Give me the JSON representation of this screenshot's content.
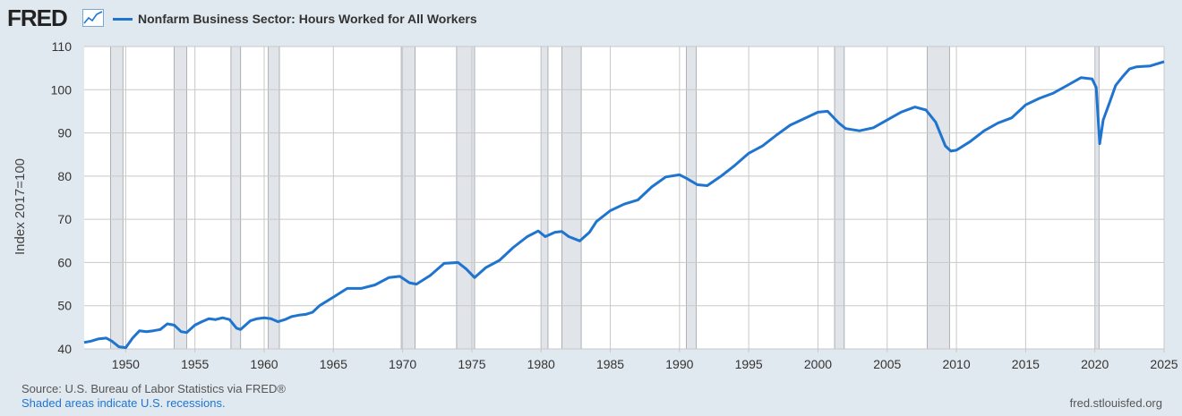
{
  "header": {
    "logo_text": "FRED",
    "logo_icon": "line-chart-icon",
    "legend_label": "Nonfarm Business Sector: Hours Worked for All Workers"
  },
  "colors": {
    "line": "#1f74d0",
    "recession": "#e1e5ea",
    "plot_bg": "#ffffff",
    "page_bg": "#e1e9f0",
    "grid": "#c8c8c8"
  },
  "footer": {
    "source": "U.S. Bureau of Labor Statistics via FRED®",
    "source_prefix": "Source:",
    "shaded_note": "Shaded areas indicate U.S. recessions.",
    "site": "fred.stlouisfed.org"
  },
  "chart_data": {
    "type": "line",
    "title": "",
    "xlabel": "",
    "ylabel": "Index 2017=100",
    "xlim": [
      1947.0,
      2025.0
    ],
    "ylim": [
      40,
      110
    ],
    "y_ticks": [
      40,
      50,
      60,
      70,
      80,
      90,
      100,
      110
    ],
    "x_ticks": [
      1950,
      1955,
      1960,
      1965,
      1970,
      1975,
      1980,
      1985,
      1990,
      1995,
      2000,
      2005,
      2010,
      2015,
      2020,
      2025
    ],
    "grid": true,
    "recessions": [
      [
        1948.9,
        1949.8
      ],
      [
        1953.5,
        1954.4
      ],
      [
        1957.6,
        1958.3
      ],
      [
        1960.3,
        1961.1
      ],
      [
        1969.9,
        1970.9
      ],
      [
        1973.9,
        1975.2
      ],
      [
        1980.0,
        1980.5
      ],
      [
        1981.5,
        1982.9
      ],
      [
        1990.5,
        1991.2
      ],
      [
        2001.2,
        2001.9
      ],
      [
        2007.9,
        2009.5
      ],
      [
        2020.0,
        2020.3
      ]
    ],
    "series": [
      {
        "name": "Nonfarm Business Sector: Hours Worked for All Workers",
        "x": [
          1947.0,
          1947.5,
          1948.0,
          1948.6,
          1949.0,
          1949.5,
          1950.0,
          1950.5,
          1951.0,
          1951.5,
          1952.0,
          1952.5,
          1953.0,
          1953.5,
          1954.0,
          1954.4,
          1955.0,
          1955.5,
          1956.0,
          1956.5,
          1957.0,
          1957.5,
          1958.0,
          1958.3,
          1959.0,
          1959.5,
          1960.0,
          1960.5,
          1961.0,
          1961.5,
          1962.0,
          1962.5,
          1963.0,
          1963.5,
          1964.0,
          1965.0,
          1966.0,
          1967.0,
          1968.0,
          1969.0,
          1969.8,
          1970.5,
          1971.0,
          1972.0,
          1973.0,
          1974.0,
          1974.6,
          1975.2,
          1976.0,
          1977.0,
          1978.0,
          1979.0,
          1979.8,
          1980.3,
          1981.0,
          1981.5,
          1982.0,
          1982.8,
          1983.5,
          1984.0,
          1985.0,
          1986.0,
          1987.0,
          1988.0,
          1989.0,
          1990.0,
          1990.5,
          1991.3,
          1992.0,
          1993.0,
          1994.0,
          1995.0,
          1996.0,
          1997.0,
          1998.0,
          1999.0,
          2000.0,
          2000.7,
          2001.5,
          2002.0,
          2003.0,
          2004.0,
          2005.0,
          2006.0,
          2007.0,
          2007.8,
          2008.5,
          2009.2,
          2009.6,
          2010.0,
          2011.0,
          2012.0,
          2013.0,
          2014.0,
          2015.0,
          2016.0,
          2017.0,
          2018.0,
          2019.0,
          2019.8,
          2020.1,
          2020.35,
          2020.6,
          2021.0,
          2021.5,
          2022.0,
          2022.5,
          2023.0,
          2024.0,
          2025.0
        ],
        "values": [
          41.5,
          41.8,
          42.3,
          42.5,
          41.8,
          40.5,
          40.3,
          42.5,
          44.2,
          44.0,
          44.2,
          44.5,
          45.8,
          45.5,
          44.0,
          43.8,
          45.5,
          46.3,
          47.0,
          46.8,
          47.2,
          46.8,
          44.8,
          44.5,
          46.5,
          47.0,
          47.2,
          47.0,
          46.3,
          46.8,
          47.5,
          47.8,
          48.0,
          48.5,
          50.0,
          52.0,
          54.0,
          54.0,
          54.8,
          56.5,
          56.8,
          55.3,
          55.0,
          57.0,
          59.8,
          60.0,
          58.5,
          56.5,
          58.8,
          60.5,
          63.5,
          66.0,
          67.3,
          66.0,
          67.0,
          67.2,
          66.0,
          65.0,
          67.0,
          69.5,
          72.0,
          73.5,
          74.5,
          77.5,
          79.8,
          80.3,
          79.5,
          78.0,
          77.8,
          80.0,
          82.5,
          85.3,
          87.0,
          89.5,
          91.8,
          93.3,
          94.8,
          95.0,
          92.3,
          91.0,
          90.5,
          91.2,
          93.0,
          94.8,
          96.0,
          95.3,
          92.5,
          87.0,
          85.8,
          86.0,
          88.0,
          90.5,
          92.3,
          93.5,
          96.5,
          98.0,
          99.2,
          101.0,
          102.8,
          102.5,
          100.5,
          87.5,
          93.0,
          96.5,
          101.0,
          103.0,
          104.8,
          105.3,
          105.5,
          106.5
        ]
      }
    ]
  }
}
